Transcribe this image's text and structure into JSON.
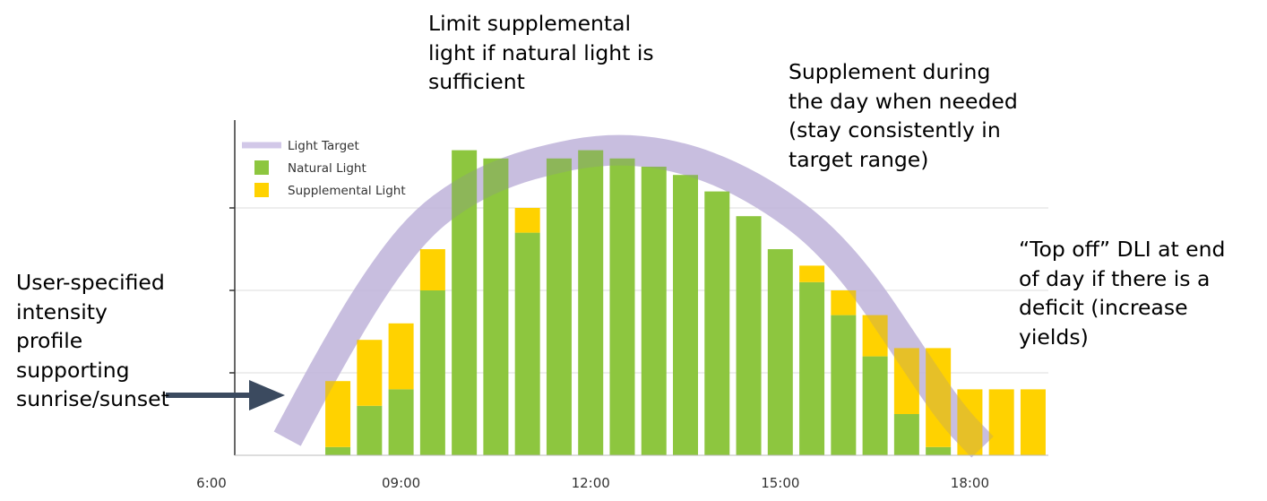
{
  "chart_data": {
    "type": "bar",
    "title": "",
    "xlabel": "",
    "ylabel": "",
    "stacked": true,
    "x_ticks": [
      "6:00",
      "09:00",
      "12:00",
      "15:00",
      "18:00"
    ],
    "x_tick_hours": [
      6,
      9,
      12,
      15,
      18
    ],
    "bar_hours": [
      8,
      8.5,
      9,
      9.5,
      10,
      10.5,
      11,
      11.5,
      12,
      12.5,
      13,
      13.5,
      14,
      14.5,
      15,
      15.5,
      16,
      16.5,
      17,
      17.5,
      18,
      18.5,
      19
    ],
    "ylim": [
      0,
      4
    ],
    "series": [
      {
        "name": "Natural Light",
        "color": "#8DC63F",
        "values": [
          0.1,
          0.6,
          0.8,
          2.0,
          3.7,
          3.6,
          2.7,
          3.6,
          3.7,
          3.6,
          3.5,
          3.4,
          3.2,
          2.9,
          2.5,
          2.1,
          1.7,
          1.2,
          0.5,
          0.1,
          0,
          0,
          0
        ]
      },
      {
        "name": "Supplemental Light",
        "color": "#FFD200",
        "values": [
          0.8,
          0.8,
          0.8,
          0.5,
          0,
          0,
          0.3,
          0,
          0,
          0,
          0,
          0,
          0,
          0,
          0,
          0.2,
          0.3,
          0.5,
          0.8,
          1.2,
          0.8,
          0.8,
          0.8
        ]
      }
    ],
    "target": {
      "name": "Light Target",
      "color": "#d2c8e8",
      "hours": [
        7.2,
        7.9,
        8.6,
        9.3,
        10.0,
        10.7,
        11.4,
        12.1,
        12.8,
        13.5,
        14.2,
        14.9,
        15.6,
        16.3,
        17.0,
        17.7,
        18.2
      ],
      "values": [
        0.2,
        1.2,
        2.1,
        2.8,
        3.2,
        3.45,
        3.6,
        3.7,
        3.7,
        3.6,
        3.4,
        3.1,
        2.7,
        2.1,
        1.3,
        0.5,
        0.1
      ]
    },
    "legend_position": "top-left",
    "grid": true
  },
  "annotations": {
    "top_center": [
      "Limit supplemental",
      "light if natural light is",
      "sufficient"
    ],
    "top_right": [
      "Supplement during",
      "the day when needed",
      "(stay consistently in",
      "target range)"
    ],
    "right": [
      "“Top off” DLI at end",
      "of day if there is a",
      "deficit (increase",
      "yields)"
    ],
    "left": [
      "User-specified",
      "intensity",
      "profile",
      "supporting",
      "sunrise/sunset"
    ]
  },
  "arrow_color": "#3b4a5f"
}
